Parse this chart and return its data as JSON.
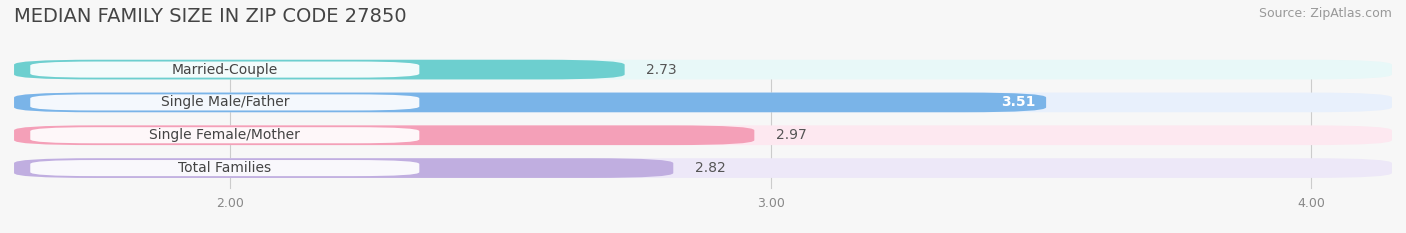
{
  "title": "MEDIAN FAMILY SIZE IN ZIP CODE 27850",
  "source": "Source: ZipAtlas.com",
  "categories": [
    "Married-Couple",
    "Single Male/Father",
    "Single Female/Mother",
    "Total Families"
  ],
  "values": [
    2.73,
    3.51,
    2.97,
    2.82
  ],
  "bar_colors": [
    "#6dcfcf",
    "#7ab4e8",
    "#f4a0b8",
    "#c0aee0"
  ],
  "bar_background_colors": [
    "#e8f8f8",
    "#e8f0fc",
    "#fde8f0",
    "#ede8f8"
  ],
  "label_text_colors": [
    "#555555",
    "#ffffff",
    "#555555",
    "#555555"
  ],
  "value_inside": [
    false,
    true,
    false,
    false
  ],
  "xlim": [
    1.6,
    4.15
  ],
  "xstart": 1.6,
  "xticks": [
    2.0,
    3.0,
    4.0
  ],
  "xtick_labels": [
    "2.00",
    "3.00",
    "4.00"
  ],
  "title_fontsize": 14,
  "source_fontsize": 9,
  "bar_label_fontsize": 10,
  "category_fontsize": 10,
  "background_color": "#f7f7f7",
  "bar_height": 0.6,
  "figsize": [
    14.06,
    2.33
  ],
  "dpi": 100
}
